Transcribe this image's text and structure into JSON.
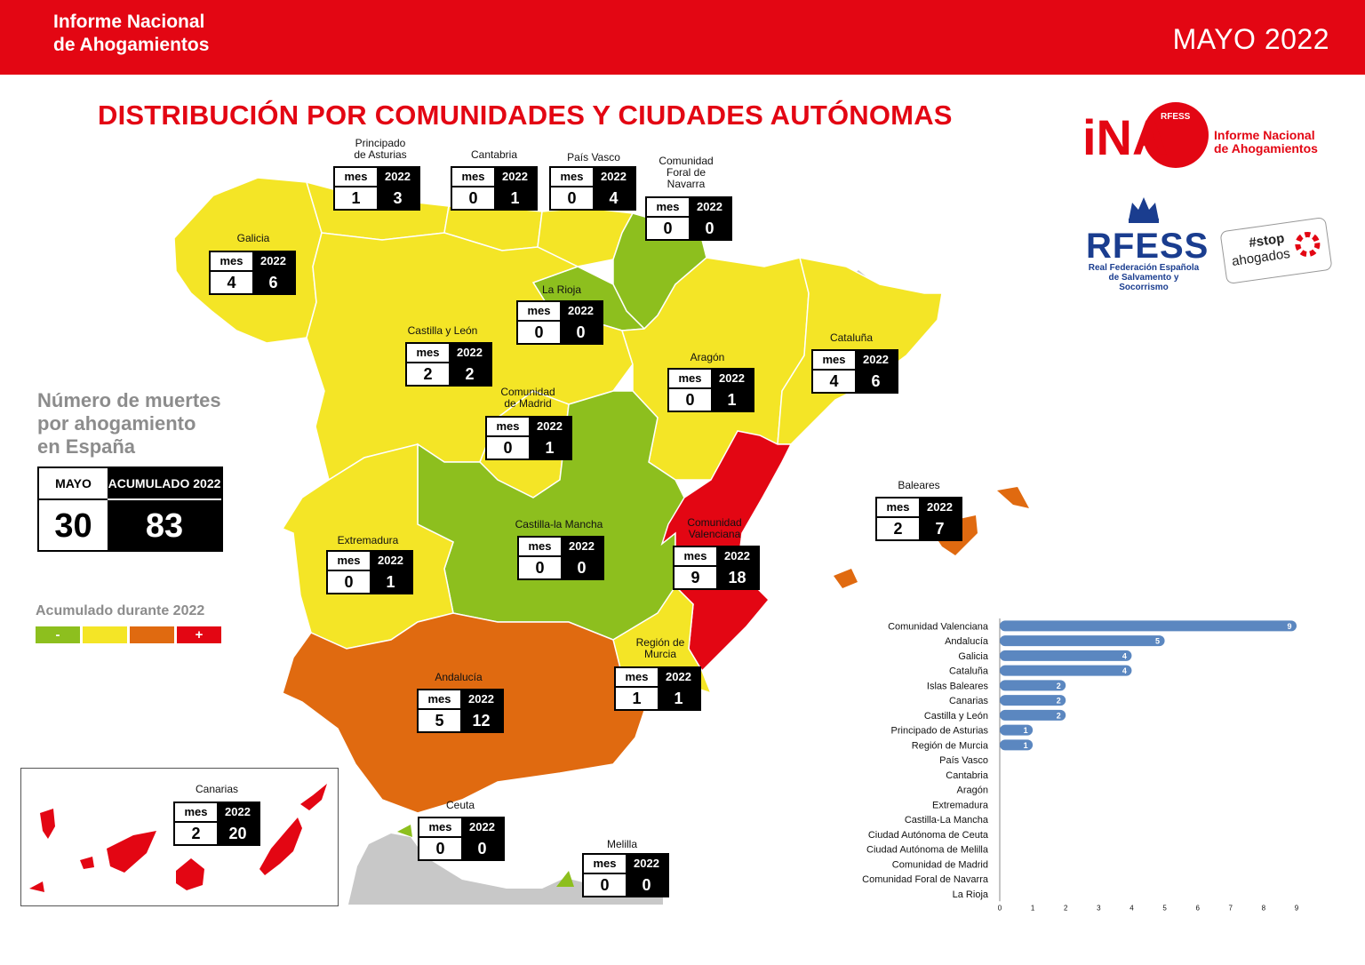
{
  "header": {
    "title_line1": "Informe Nacional",
    "title_line2": "de Ahogamientos",
    "date": "MAYO 2022"
  },
  "main_title": "DISTRIBUCIÓN POR COMUNIDADES Y CIUDADES AUTÓNOMAS",
  "logos": {
    "ina": "iNA",
    "ina_small": "RFESS",
    "ina_text_line1": "Informe Nacional",
    "ina_text_line2": "de Ahogamientos",
    "rfess": "RFESS",
    "rfess_sub_line1": "Real Federación Española",
    "rfess_sub_line2": "de Salvamento y Socorrismo",
    "stop_line1": "#stop",
    "stop_line2": "ahogados"
  },
  "headline": {
    "line1": "Número de muertes",
    "line2": "por ahogamiento",
    "line3": "en España"
  },
  "totals": {
    "label_month": "MAYO",
    "label_cumulative": "ACUMULADO 2022",
    "month": "30",
    "cumulative": "83"
  },
  "legend": {
    "title": "Acumulado durante 2022",
    "items": [
      {
        "label": "-",
        "color": "#8dbf1e"
      },
      {
        "label": "",
        "color": "#f4e526"
      },
      {
        "label": "",
        "color": "#e06a10"
      },
      {
        "label": "+",
        "color": "#e30613"
      }
    ]
  },
  "map_colors": {
    "low": "#8dbf1e",
    "mid_low": "#f4e526",
    "mid_high": "#e06a10",
    "high": "#e30613",
    "other": "#c8c8c8"
  },
  "col_month": "mes",
  "col_year": "2022",
  "regions": [
    {
      "name": "Galicia",
      "mes": "4",
      "y2022": "6",
      "color": "#f4e526"
    },
    {
      "name": "Principado de Asturias",
      "label_line1": "Principado",
      "label_line2": "de Asturias",
      "mes": "1",
      "y2022": "3",
      "color": "#f4e526"
    },
    {
      "name": "Cantabria",
      "mes": "0",
      "y2022": "1",
      "color": "#f4e526"
    },
    {
      "name": "País Vasco",
      "mes": "0",
      "y2022": "4",
      "color": "#f4e526"
    },
    {
      "name": "Comunidad Foral de Navarra",
      "label_line1": "Comunidad",
      "label_line2": "Foral de",
      "label_line3": "Navarra",
      "mes": "0",
      "y2022": "0",
      "color": "#8dbf1e"
    },
    {
      "name": "La Rioja",
      "mes": "0",
      "y2022": "0",
      "color": "#8dbf1e"
    },
    {
      "name": "Castilla y León",
      "mes": "2",
      "y2022": "2",
      "color": "#f4e526"
    },
    {
      "name": "Aragón",
      "mes": "0",
      "y2022": "1",
      "color": "#f4e526"
    },
    {
      "name": "Cataluña",
      "mes": "4",
      "y2022": "6",
      "color": "#f4e526"
    },
    {
      "name": "Comunidad de Madrid",
      "label_line1": "Comunidad",
      "label_line2": "de Madrid",
      "mes": "0",
      "y2022": "1",
      "color": "#f4e526"
    },
    {
      "name": "Castilla-la Mancha",
      "mes": "0",
      "y2022": "0",
      "color": "#8dbf1e"
    },
    {
      "name": "Extremadura",
      "mes": "0",
      "y2022": "1",
      "color": "#f4e526"
    },
    {
      "name": "Comunidad Valenciana",
      "label_line1": "Comunidad",
      "label_line2": "Valenciana",
      "mes": "9",
      "y2022": "18",
      "color": "#e30613"
    },
    {
      "name": "Baleares",
      "mes": "2",
      "y2022": "7",
      "color": "#e06a10"
    },
    {
      "name": "Región de Murcia",
      "label_line1": "Región de",
      "label_line2": "Murcia",
      "mes": "1",
      "y2022": "1",
      "color": "#f4e526"
    },
    {
      "name": "Andalucía",
      "mes": "5",
      "y2022": "12",
      "color": "#e06a10"
    },
    {
      "name": "Canarias",
      "mes": "2",
      "y2022": "20",
      "color": "#e30613"
    },
    {
      "name": "Ceuta",
      "mes": "0",
      "y2022": "0",
      "color": "#8dbf1e"
    },
    {
      "name": "Melilla",
      "mes": "0",
      "y2022": "0",
      "color": "#8dbf1e"
    }
  ],
  "chart_data": {
    "type": "bar",
    "orientation": "horizontal",
    "bar_color": "#5b87c0",
    "categories": [
      "Comunidad Valenciana",
      "Andalucía",
      "Galicia",
      "Cataluña",
      "Islas Baleares",
      "Canarias",
      "Castilla y León",
      "Principado de Asturias",
      "Región de Murcia",
      "País Vasco",
      "Cantabria",
      "Aragón",
      "Extremadura",
      "Castilla-La Mancha",
      "Ciudad Autónoma de Ceuta",
      "Ciudad Autónoma de Melilla",
      "Comunidad de Madrid",
      "Comunidad Foral de Navarra",
      "La Rioja"
    ],
    "values": [
      9,
      5,
      4,
      4,
      2,
      2,
      2,
      1,
      1,
      0,
      0,
      0,
      0,
      0,
      0,
      0,
      0,
      0,
      0
    ],
    "xlim": [
      0,
      9
    ],
    "xticks": [
      "0",
      "1",
      "2",
      "3",
      "4",
      "5",
      "6",
      "7",
      "8",
      "9"
    ],
    "grid": false
  }
}
